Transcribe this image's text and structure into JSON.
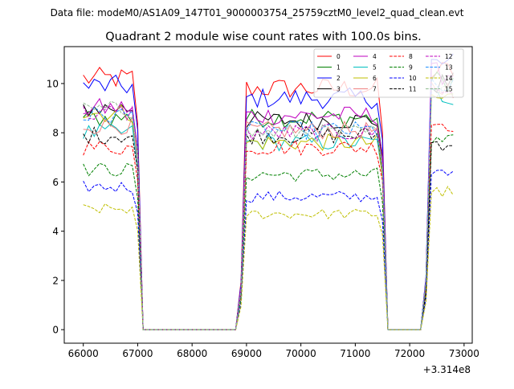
{
  "figure": {
    "suptitle": "Data file: modeM0/AS1A09_147T01_9000003754_25759cztM0_level2_quad_clean.evt"
  },
  "chart_data": {
    "type": "line",
    "title": "Quadrant 2 module wise count rates with 100.0s bins.",
    "xlabel": "",
    "ylabel": "",
    "x_offset_label": "+3.314e8",
    "xlim": [
      65650,
      73150
    ],
    "ylim": [
      -0.55,
      11.5
    ],
    "xticks": [
      66000,
      67000,
      68000,
      69000,
      70000,
      71000,
      72000,
      73000
    ],
    "xtick_labels": [
      "66000",
      "67000",
      "68000",
      "69000",
      "70000",
      "71000",
      "72000",
      "73000"
    ],
    "yticks": [
      0,
      2,
      4,
      6,
      8,
      10
    ],
    "ytick_labels": [
      "0",
      "2",
      "4",
      "6",
      "8",
      "10"
    ],
    "grid": false,
    "legend": {
      "placement": "top-right",
      "columns": 4
    },
    "segments": [
      [
        66000,
        67000
      ],
      [
        68900,
        71500
      ],
      [
        72300,
        72850
      ]
    ],
    "gap_level": 0,
    "series": [
      {
        "name": "0",
        "color": "#ff0000",
        "dash": "solid",
        "levels": [
          10.2,
          9.8,
          10.5
        ]
      },
      {
        "name": "1",
        "color": "#008000",
        "dash": "solid",
        "levels": [
          8.6,
          8.6,
          10.1
        ]
      },
      {
        "name": "2",
        "color": "#0000ff",
        "dash": "solid",
        "levels": [
          9.9,
          9.4,
          10.8
        ]
      },
      {
        "name": "3",
        "color": "#000000",
        "dash": "solid",
        "levels": [
          9.0,
          8.5,
          10.0
        ]
      },
      {
        "name": "4",
        "color": "#bf00bf",
        "dash": "solid",
        "levels": [
          9.0,
          8.7,
          10.4
        ]
      },
      {
        "name": "5",
        "color": "#00bfbf",
        "dash": "solid",
        "levels": [
          8.0,
          7.6,
          9.5
        ]
      },
      {
        "name": "6",
        "color": "#bfbf00",
        "dash": "solid",
        "levels": [
          8.8,
          7.6,
          9.4
        ]
      },
      {
        "name": "7",
        "color": "#f08080",
        "dash": "solid",
        "levels": [
          8.3,
          8.1,
          9.8
        ]
      },
      {
        "name": "8",
        "color": "#ff0000",
        "dash": "dashed",
        "levels": [
          7.4,
          7.4,
          8.4
        ]
      },
      {
        "name": "9",
        "color": "#008000",
        "dash": "dashed",
        "levels": [
          6.5,
          6.3,
          7.6
        ]
      },
      {
        "name": "10",
        "color": "#0000ff",
        "dash": "dashed",
        "levels": [
          5.8,
          5.4,
          6.3
        ]
      },
      {
        "name": "11",
        "color": "#000000",
        "dash": "dashed",
        "levels": [
          7.9,
          7.9,
          7.6
        ]
      },
      {
        "name": "12",
        "color": "#bf00bf",
        "dash": "dashed",
        "levels": [
          8.8,
          8.0,
          9.7
        ]
      },
      {
        "name": "13",
        "color": "#1e90ff",
        "dash": "dashed",
        "levels": [
          8.7,
          8.1,
          9.8
        ]
      },
      {
        "name": "14",
        "color": "#bfbf00",
        "dash": "dashed",
        "levels": [
          4.9,
          4.7,
          5.6
        ]
      },
      {
        "name": "15",
        "color": "#8fbc8f",
        "dash": "dashed",
        "levels": [
          8.9,
          8.0,
          9.9
        ]
      }
    ]
  }
}
